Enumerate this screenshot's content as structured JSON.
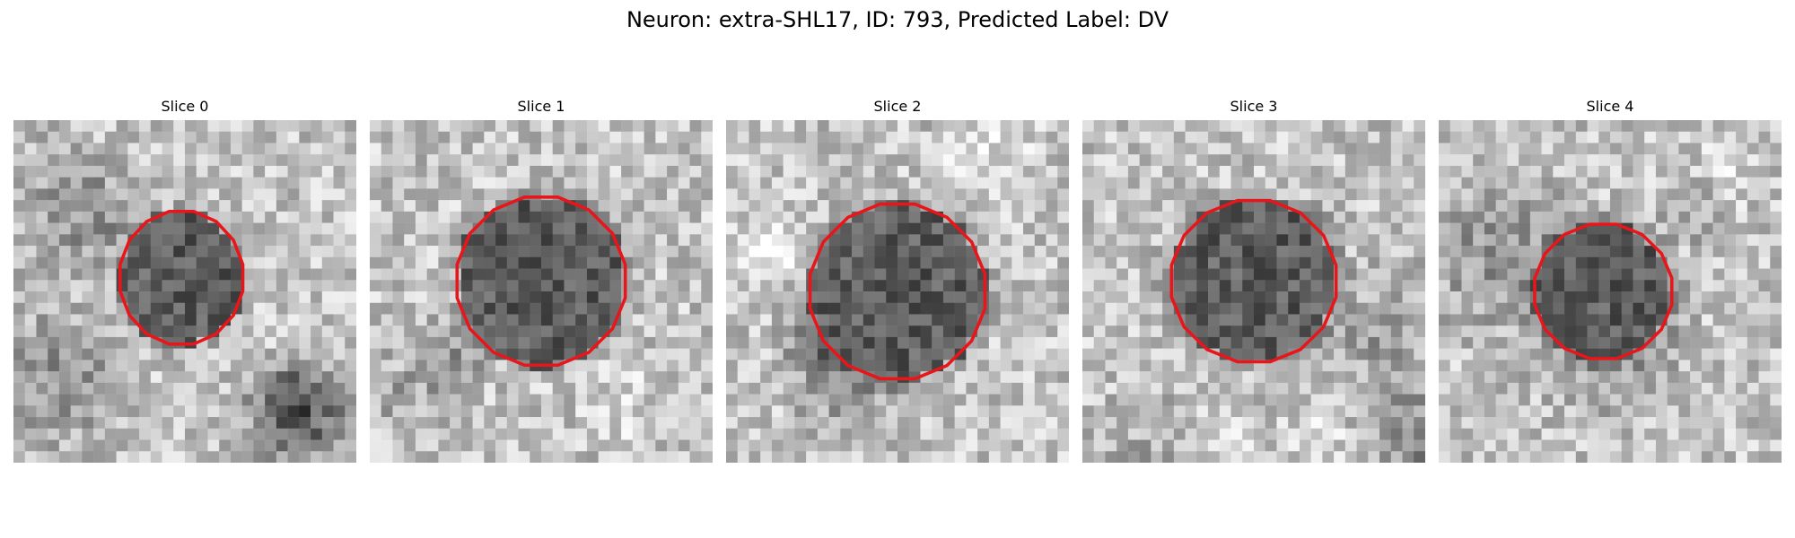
{
  "figure": {
    "title": "Neuron: extra-SHL17, ID: 793, Predicted Label: DV"
  },
  "panels": [
    {
      "title": "Slice 0",
      "contour_radius": 0.38,
      "center": [
        0.49,
        0.46
      ],
      "scale": [
        0.96,
        1.04
      ],
      "seed": 11,
      "dark_patch": true
    },
    {
      "title": "Slice 1",
      "contour_radius": 0.5,
      "center": [
        0.5,
        0.47
      ],
      "scale": [
        1.0,
        1.0
      ],
      "seed": 23,
      "dark_patch": false
    },
    {
      "title": "Slice 2",
      "contour_radius": 0.52,
      "center": [
        0.5,
        0.5
      ],
      "scale": [
        1.0,
        1.0
      ],
      "seed": 37,
      "dark_patch": false
    },
    {
      "title": "Slice 3",
      "contour_radius": 0.48,
      "center": [
        0.5,
        0.47
      ],
      "scale": [
        1.02,
        1.0
      ],
      "seed": 41,
      "dark_patch": false
    },
    {
      "title": "Slice 4",
      "contour_radius": 0.4,
      "center": [
        0.48,
        0.5
      ],
      "scale": [
        1.02,
        1.0
      ],
      "seed": 53,
      "dark_patch": false
    }
  ],
  "colors": {
    "contour": "#e8161b"
  }
}
